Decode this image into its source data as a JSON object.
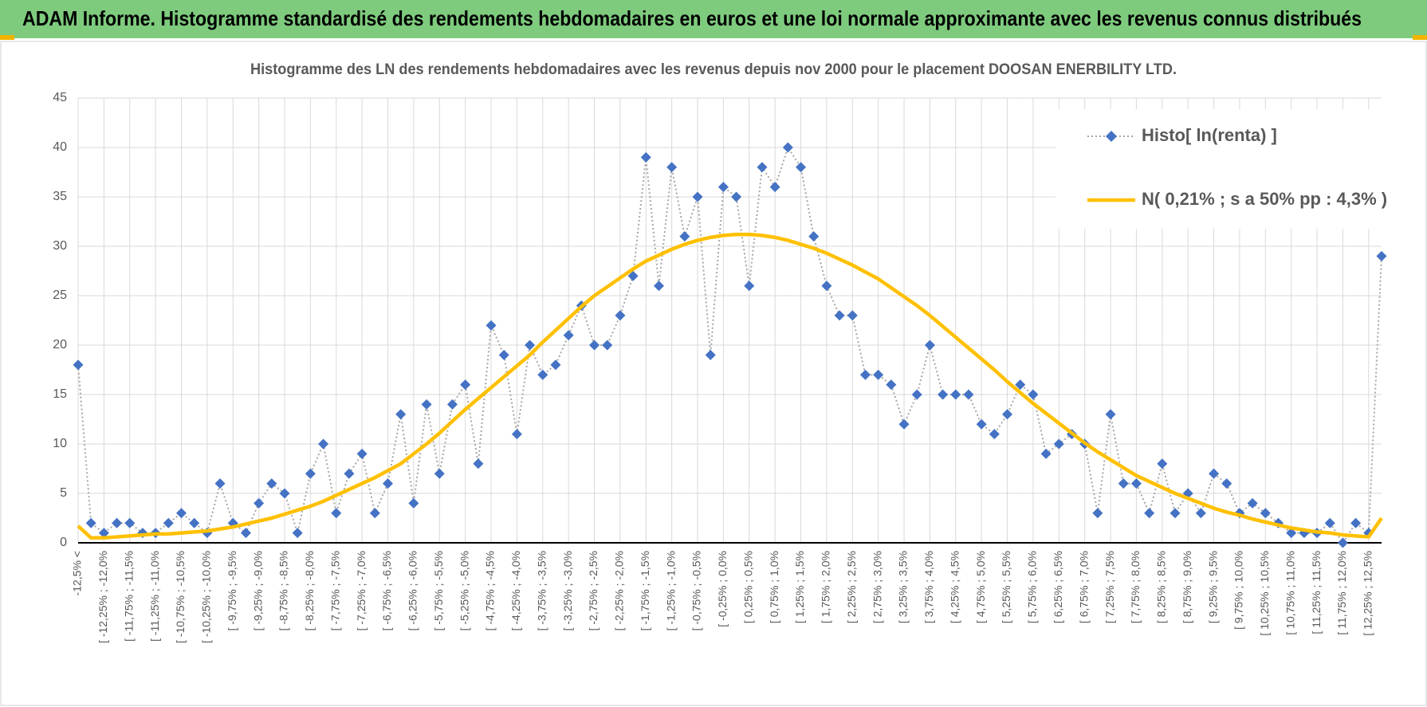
{
  "header": {
    "title": "ADAM Informe. Histogramme standardisé des rendements hebdomadaires en euros et une loi normale approximante avec les revenus connus distribués"
  },
  "chart_data": {
    "type": "line",
    "title": "Histogramme des LN des rendements hebdomadaires avec les revenus depuis nov 2000 pour le placement DOOSAN ENERBILITY LTD.",
    "categories": [
      "-12,5% <",
      null,
      "[ -12,25% ; -12,0%",
      null,
      "[ -11,75% ; -11,5%",
      null,
      "[ -11,25% ; -11,0%",
      null,
      "[ -10,75% ; -10,5%",
      null,
      "[ -10,25% ; -10,0%",
      null,
      "[ -9,75% ; -9,5%",
      null,
      "[ -9,25% ; -9,0%",
      null,
      "[ -8,75% ; -8,5%",
      null,
      "[ -8,25% ; -8,0%",
      null,
      "[ -7,75% ; -7,5%",
      null,
      "[ -7,25% ; -7,0%",
      null,
      "[ -6,75% ; -6,5%",
      null,
      "[ -6,25% ; -6,0%",
      null,
      "[ -5,75% ; -5,5%",
      null,
      "[ -5,25% ; -5,0%",
      null,
      "[ -4,75% ; -4,5%",
      null,
      "[ -4,25% ; -4,0%",
      null,
      "[ -3,75% ; -3,5%",
      null,
      "[ -3,25% ; -3,0%",
      null,
      "[ -2,75% ; -2,5%",
      null,
      "[ -2,25% ; -2,0%",
      null,
      "[ -1,75% ; -1,5%",
      null,
      "[ -1,25% ; -1,0%",
      null,
      "[ -0,75% ; -0,5%",
      null,
      "[ -0,25% ; 0,0%",
      null,
      "[ 0,25% ; 0,5%",
      null,
      "[ 0,75% ; 1,0%",
      null,
      "[ 1,25% ; 1,5%",
      null,
      "[ 1,75% ; 2,0%",
      null,
      "[ 2,25% ; 2,5%",
      null,
      "[ 2,75% ; 3,0%",
      null,
      "[ 3,25% ; 3,5%",
      null,
      "[ 3,75% ; 4,0%",
      null,
      "[ 4,25% ; 4,5%",
      null,
      "[ 4,75% ; 5,0%",
      null,
      "[ 5,25% ; 5,5%",
      null,
      "[ 5,75% ; 6,0%",
      null,
      "[ 6,25% ; 6,5%",
      null,
      "[ 6,75% ; 7,0%",
      null,
      "[ 7,25% ; 7,5%",
      null,
      "[ 7,75% ; 8,0%",
      null,
      "[ 8,25% ; 8,5%",
      null,
      "[ 8,75% ; 9,0%",
      null,
      "[ 9,25% ; 9,5%",
      null,
      "[ 9,75% ; 10,0%",
      null,
      "[ 10,25% ; 10,5%",
      null,
      "[ 10,75% ; 11,0%",
      null,
      "[ 11,25% ; 11,5%",
      null,
      "[ 11,75% ; 12,0%",
      null,
      "[ 12,25% ; 12,5%",
      null
    ],
    "series": [
      {
        "name": "Histo[ ln(renta) ]",
        "color": "#4472c4",
        "line_color": "#a6a6a6",
        "values": [
          18,
          2,
          1,
          2,
          2,
          1,
          1,
          2,
          3,
          2,
          1,
          6,
          2,
          1,
          4,
          6,
          5,
          1,
          7,
          10,
          3,
          7,
          9,
          3,
          6,
          13,
          4,
          14,
          7,
          14,
          16,
          8,
          22,
          19,
          11,
          20,
          17,
          18,
          21,
          24,
          20,
          20,
          23,
          27,
          39,
          26,
          38,
          31,
          35,
          19,
          36,
          35,
          26,
          38,
          36,
          40,
          38,
          31,
          26,
          23,
          23,
          17,
          17,
          16,
          12,
          15,
          20,
          15,
          15,
          15,
          12,
          11,
          13,
          16,
          15,
          9,
          10,
          11,
          10,
          3,
          13,
          6,
          6,
          3,
          8,
          3,
          5,
          3,
          7,
          6,
          3,
          4,
          3,
          2,
          1,
          1,
          1,
          2,
          0,
          2,
          1,
          29
        ]
      },
      {
        "name": "N( 0,21% ; s a 50% pp : 4,3% )",
        "color": "#ffc000",
        "values": [
          1.7,
          0.5,
          0.5,
          0.6,
          0.7,
          0.8,
          0.9,
          0.9,
          1.0,
          1.1,
          1.2,
          1.4,
          1.6,
          1.9,
          2.2,
          2.5,
          2.9,
          3.3,
          3.7,
          4.2,
          4.8,
          5.4,
          6.0,
          6.6,
          7.3,
          8.0,
          9.0,
          10.0,
          11.1,
          12.3,
          13.5,
          14.6,
          15.7,
          16.8,
          17.9,
          19.0,
          20.3,
          21.5,
          22.7,
          23.9,
          25.0,
          25.9,
          26.8,
          27.7,
          28.5,
          29.1,
          29.7,
          30.2,
          30.6,
          30.9,
          31.1,
          31.2,
          31.2,
          31.1,
          30.9,
          30.6,
          30.2,
          29.8,
          29.3,
          28.7,
          28.1,
          27.4,
          26.7,
          25.8,
          24.9,
          24.0,
          23.0,
          21.9,
          20.8,
          19.7,
          18.6,
          17.5,
          16.3,
          15.2,
          14.1,
          13.1,
          12.1,
          11.1,
          10.1,
          9.2,
          8.4,
          7.6,
          6.8,
          6.2,
          5.6,
          5.0,
          4.5,
          4.0,
          3.5,
          3.1,
          2.8,
          2.4,
          2.1,
          1.8,
          1.5,
          1.3,
          1.1,
          1.0,
          0.8,
          0.7,
          0.6,
          2.5
        ]
      }
    ],
    "ylim": [
      0,
      45
    ],
    "yticks": [
      0,
      5,
      10,
      15,
      20,
      25,
      30,
      35,
      40,
      45
    ],
    "grid": true,
    "legend": "upper right"
  }
}
